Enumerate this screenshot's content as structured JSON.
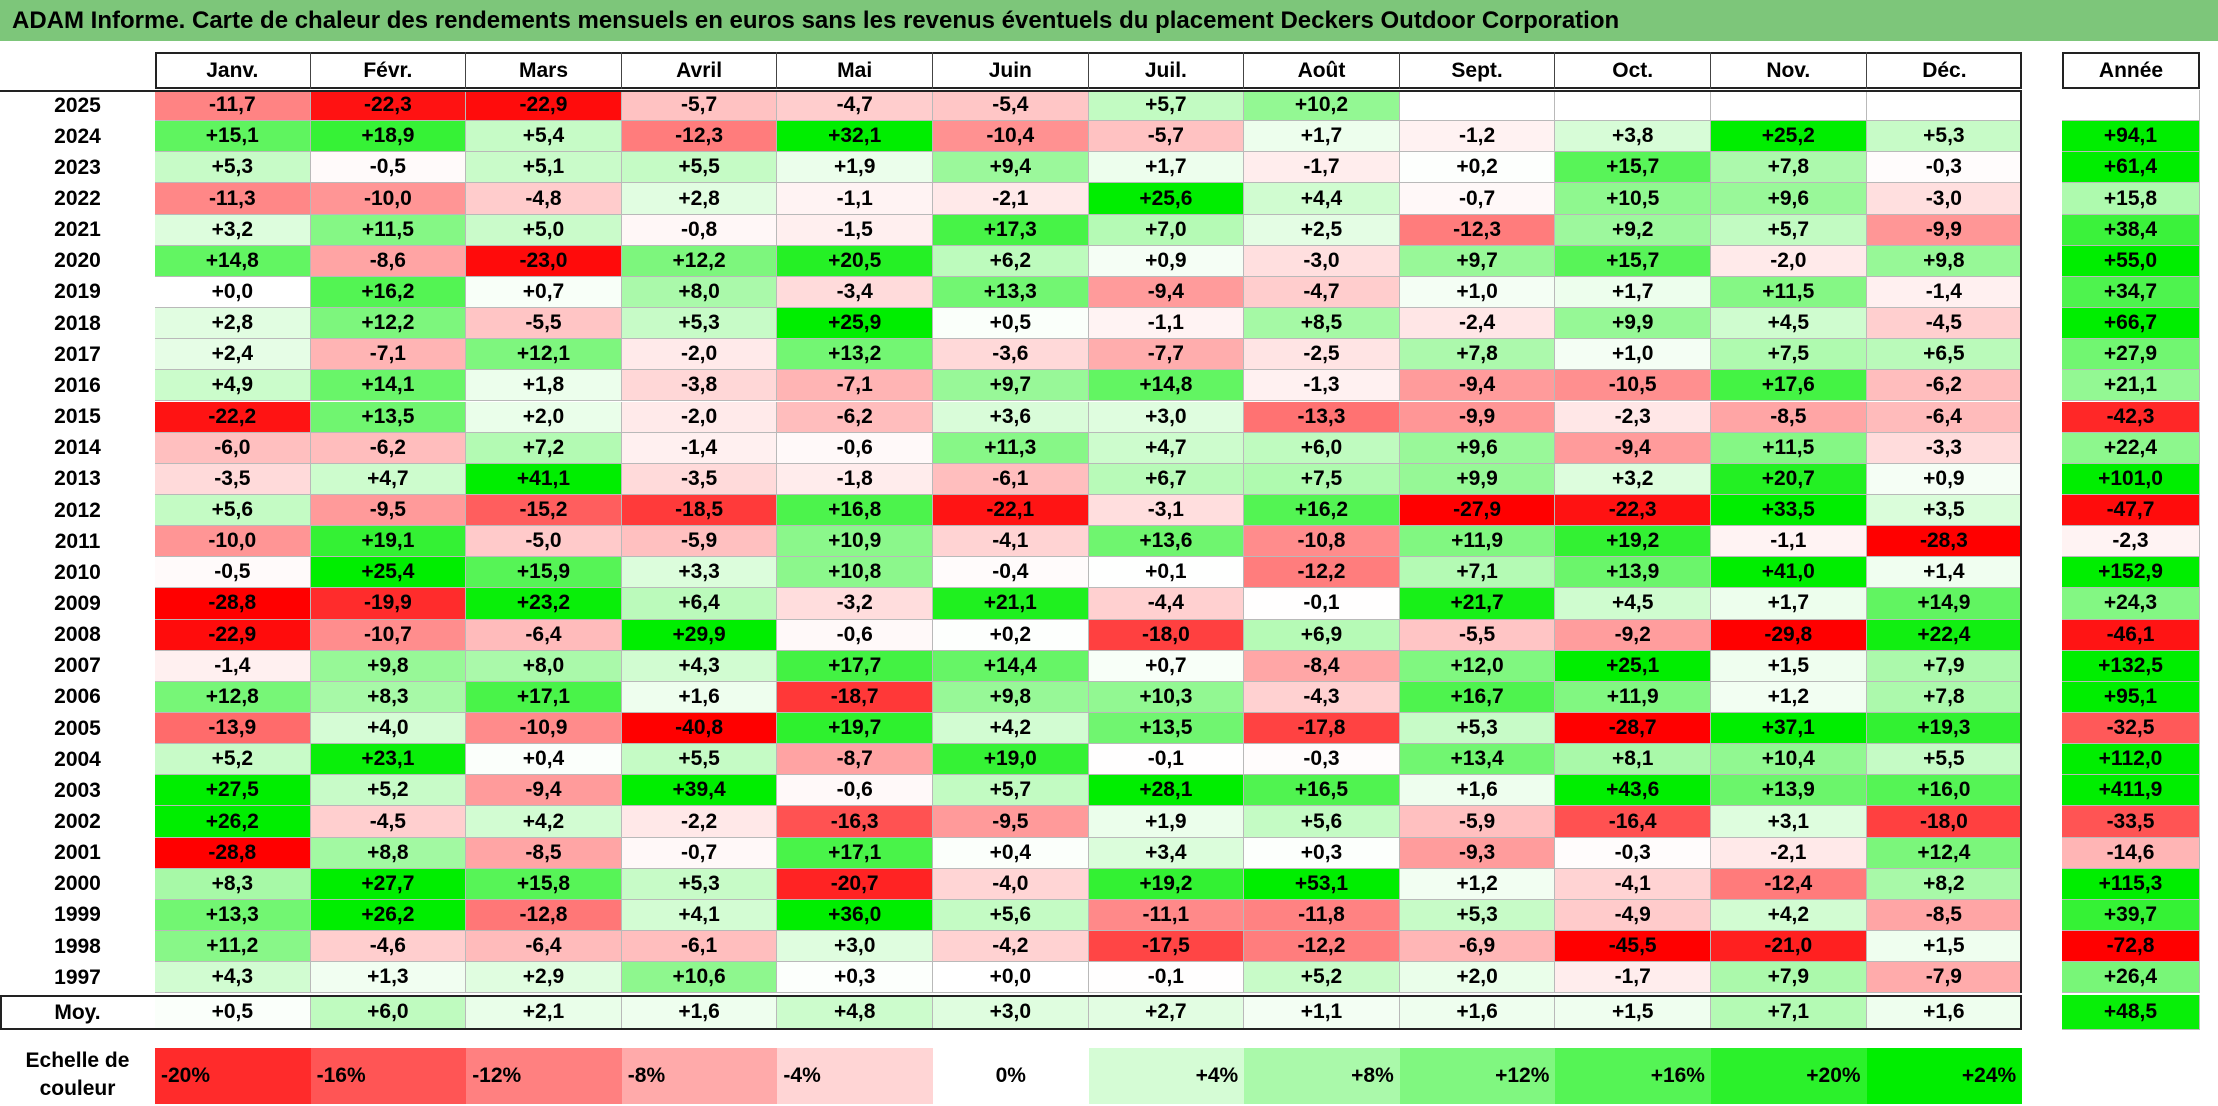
{
  "title": "ADAM Informe. Carte de chaleur des rendements mensuels en euros sans les revenus éventuels du placement Deckers Outdoor Corporation",
  "chart_data": {
    "type": "heatmap",
    "title": "ADAM Informe. Carte de chaleur des rendements mensuels en euros sans les revenus éventuels du placement Deckers Outdoor Corporation",
    "months": [
      "Janv.",
      "Févr.",
      "Mars",
      "Avril",
      "Mai",
      "Juin",
      "Juil.",
      "Août",
      "Sept.",
      "Oct.",
      "Nov.",
      "Déc."
    ],
    "year_header": "Année",
    "rows": [
      {
        "year": "2025",
        "values": [
          "-11,7",
          "-22,3",
          "-22,9",
          "-5,7",
          "-4,7",
          "-5,4",
          "+5,7",
          "+10,2",
          "",
          "",
          "",
          ""
        ],
        "annual": ""
      },
      {
        "year": "2024",
        "values": [
          "+15,1",
          "+18,9",
          "+5,4",
          "-12,3",
          "+32,1",
          "-10,4",
          "-5,7",
          "+1,7",
          "-1,2",
          "+3,8",
          "+25,2",
          "+5,3"
        ],
        "annual": "+94,1"
      },
      {
        "year": "2023",
        "values": [
          "+5,3",
          "-0,5",
          "+5,1",
          "+5,5",
          "+1,9",
          "+9,4",
          "+1,7",
          "-1,7",
          "+0,2",
          "+15,7",
          "+7,8",
          "-0,3"
        ],
        "annual": "+61,4"
      },
      {
        "year": "2022",
        "values": [
          "-11,3",
          "-10,0",
          "-4,8",
          "+2,8",
          "-1,1",
          "-2,1",
          "+25,6",
          "+4,4",
          "-0,7",
          "+10,5",
          "+9,6",
          "-3,0"
        ],
        "annual": "+15,8"
      },
      {
        "year": "2021",
        "values": [
          "+3,2",
          "+11,5",
          "+5,0",
          "-0,8",
          "-1,5",
          "+17,3",
          "+7,0",
          "+2,5",
          "-12,3",
          "+9,2",
          "+5,7",
          "-9,9"
        ],
        "annual": "+38,4"
      },
      {
        "year": "2020",
        "values": [
          "+14,8",
          "-8,6",
          "-23,0",
          "+12,2",
          "+20,5",
          "+6,2",
          "+0,9",
          "-3,0",
          "+9,7",
          "+15,7",
          "-2,0",
          "+9,8"
        ],
        "annual": "+55,0"
      },
      {
        "year": "2019",
        "values": [
          "+0,0",
          "+16,2",
          "+0,7",
          "+8,0",
          "-3,4",
          "+13,3",
          "-9,4",
          "-4,7",
          "+1,0",
          "+1,7",
          "+11,5",
          "-1,4"
        ],
        "annual": "+34,7"
      },
      {
        "year": "2018",
        "values": [
          "+2,8",
          "+12,2",
          "-5,5",
          "+5,3",
          "+25,9",
          "+0,5",
          "-1,1",
          "+8,5",
          "-2,4",
          "+9,9",
          "+4,5",
          "-4,5"
        ],
        "annual": "+66,7"
      },
      {
        "year": "2017",
        "values": [
          "+2,4",
          "-7,1",
          "+12,1",
          "-2,0",
          "+13,2",
          "-3,6",
          "-7,7",
          "-2,5",
          "+7,8",
          "+1,0",
          "+7,5",
          "+6,5"
        ],
        "annual": "+27,9"
      },
      {
        "year": "2016",
        "values": [
          "+4,9",
          "+14,1",
          "+1,8",
          "-3,8",
          "-7,1",
          "+9,7",
          "+14,8",
          "-1,3",
          "-9,4",
          "-10,5",
          "+17,6",
          "-6,2"
        ],
        "annual": "+21,1"
      },
      {
        "year": "2015",
        "values": [
          "-22,2",
          "+13,5",
          "+2,0",
          "-2,0",
          "-6,2",
          "+3,6",
          "+3,0",
          "-13,3",
          "-9,9",
          "-2,3",
          "-8,5",
          "-6,4"
        ],
        "annual": "-42,3"
      },
      {
        "year": "2014",
        "values": [
          "-6,0",
          "-6,2",
          "+7,2",
          "-1,4",
          "-0,6",
          "+11,3",
          "+4,7",
          "+6,0",
          "+9,6",
          "-9,4",
          "+11,5",
          "-3,3"
        ],
        "annual": "+22,4"
      },
      {
        "year": "2013",
        "values": [
          "-3,5",
          "+4,7",
          "+41,1",
          "-3,5",
          "-1,8",
          "-6,1",
          "+6,7",
          "+7,5",
          "+9,9",
          "+3,2",
          "+20,7",
          "+0,9"
        ],
        "annual": "+101,0"
      },
      {
        "year": "2012",
        "values": [
          "+5,6",
          "-9,5",
          "-15,2",
          "-18,5",
          "+16,8",
          "-22,1",
          "-3,1",
          "+16,2",
          "-27,9",
          "-22,3",
          "+33,5",
          "+3,5"
        ],
        "annual": "-47,7"
      },
      {
        "year": "2011",
        "values": [
          "-10,0",
          "+19,1",
          "-5,0",
          "-5,9",
          "+10,9",
          "-4,1",
          "+13,6",
          "-10,8",
          "+11,9",
          "+19,2",
          "-1,1",
          "-28,3"
        ],
        "annual": "-2,3"
      },
      {
        "year": "2010",
        "values": [
          "-0,5",
          "+25,4",
          "+15,9",
          "+3,3",
          "+10,8",
          "-0,4",
          "+0,1",
          "-12,2",
          "+7,1",
          "+13,9",
          "+41,0",
          "+1,4"
        ],
        "annual": "+152,9"
      },
      {
        "year": "2009",
        "values": [
          "-28,8",
          "-19,9",
          "+23,2",
          "+6,4",
          "-3,2",
          "+21,1",
          "-4,4",
          "-0,1",
          "+21,7",
          "+4,5",
          "+1,7",
          "+14,9"
        ],
        "annual": "+24,3"
      },
      {
        "year": "2008",
        "values": [
          "-22,9",
          "-10,7",
          "-6,4",
          "+29,9",
          "-0,6",
          "+0,2",
          "-18,0",
          "+6,9",
          "-5,5",
          "-9,2",
          "-29,8",
          "+22,4"
        ],
        "annual": "-46,1"
      },
      {
        "year": "2007",
        "values": [
          "-1,4",
          "+9,8",
          "+8,0",
          "+4,3",
          "+17,7",
          "+14,4",
          "+0,7",
          "-8,4",
          "+12,0",
          "+25,1",
          "+1,5",
          "+7,9"
        ],
        "annual": "+132,5"
      },
      {
        "year": "2006",
        "values": [
          "+12,8",
          "+8,3",
          "+17,1",
          "+1,6",
          "-18,7",
          "+9,8",
          "+10,3",
          "-4,3",
          "+16,7",
          "+11,9",
          "+1,2",
          "+7,8"
        ],
        "annual": "+95,1"
      },
      {
        "year": "2005",
        "values": [
          "-13,9",
          "+4,0",
          "-10,9",
          "-40,8",
          "+19,7",
          "+4,2",
          "+13,5",
          "-17,8",
          "+5,3",
          "-28,7",
          "+37,1",
          "+19,3"
        ],
        "annual": "-32,5"
      },
      {
        "year": "2004",
        "values": [
          "+5,2",
          "+23,1",
          "+0,4",
          "+5,5",
          "-8,7",
          "+19,0",
          "-0,1",
          "-0,3",
          "+13,4",
          "+8,1",
          "+10,4",
          "+5,5"
        ],
        "annual": "+112,0"
      },
      {
        "year": "2003",
        "values": [
          "+27,5",
          "+5,2",
          "-9,4",
          "+39,4",
          "-0,6",
          "+5,7",
          "+28,1",
          "+16,5",
          "+1,6",
          "+43,6",
          "+13,9",
          "+16,0"
        ],
        "annual": "+411,9"
      },
      {
        "year": "2002",
        "values": [
          "+26,2",
          "-4,5",
          "+4,2",
          "-2,2",
          "-16,3",
          "-9,5",
          "+1,9",
          "+5,6",
          "-5,9",
          "-16,4",
          "+3,1",
          "-18,0"
        ],
        "annual": "-33,5"
      },
      {
        "year": "2001",
        "values": [
          "-28,8",
          "+8,8",
          "-8,5",
          "-0,7",
          "+17,1",
          "+0,4",
          "+3,4",
          "+0,3",
          "-9,3",
          "-0,3",
          "-2,1",
          "+12,4"
        ],
        "annual": "-14,6"
      },
      {
        "year": "2000",
        "values": [
          "+8,3",
          "+27,7",
          "+15,8",
          "+5,3",
          "-20,7",
          "-4,0",
          "+19,2",
          "+53,1",
          "+1,2",
          "-4,1",
          "-12,4",
          "+8,2"
        ],
        "annual": "+115,3"
      },
      {
        "year": "1999",
        "values": [
          "+13,3",
          "+26,2",
          "-12,8",
          "+4,1",
          "+36,0",
          "+5,6",
          "-11,1",
          "-11,8",
          "+5,3",
          "-4,9",
          "+4,2",
          "-8,5"
        ],
        "annual": "+39,7"
      },
      {
        "year": "1998",
        "values": [
          "+11,2",
          "-4,6",
          "-6,4",
          "-6,1",
          "+3,0",
          "-4,2",
          "-17,5",
          "-12,2",
          "-6,9",
          "-45,5",
          "-21,0",
          "+1,5"
        ],
        "annual": "-72,8"
      },
      {
        "year": "1997",
        "values": [
          "+4,3",
          "+1,3",
          "+2,9",
          "+10,6",
          "+0,3",
          "+0,0",
          "-0,1",
          "+5,2",
          "+2,0",
          "-1,7",
          "+7,9",
          "-7,9"
        ],
        "annual": "+26,4"
      }
    ],
    "average": {
      "label": "Moy.",
      "values": [
        "+0,5",
        "+6,0",
        "+2,1",
        "+1,6",
        "+4,8",
        "+3,0",
        "+2,7",
        "+1,1",
        "+1,6",
        "+1,5",
        "+7,1",
        "+1,6"
      ],
      "annual": "+48,5"
    },
    "scale": {
      "label_line1": "Echelle de",
      "label_line2": "couleur",
      "steps": [
        {
          "label": "-20%",
          "value": -20,
          "align": "left"
        },
        {
          "label": "-16%",
          "value": -16,
          "align": "left"
        },
        {
          "label": "-12%",
          "value": -12,
          "align": "left"
        },
        {
          "label": "-8%",
          "value": -8,
          "align": "left"
        },
        {
          "label": "-4%",
          "value": -4,
          "align": "left"
        },
        {
          "label": "0%",
          "value": 0,
          "align": "center"
        },
        {
          "label": "+4%",
          "value": 4,
          "align": "right"
        },
        {
          "label": "+8%",
          "value": 8,
          "align": "right"
        },
        {
          "label": "+12%",
          "value": 12,
          "align": "right"
        },
        {
          "label": "+16%",
          "value": 16,
          "align": "right"
        },
        {
          "label": "+20%",
          "value": 20,
          "align": "right"
        },
        {
          "label": "+24%",
          "value": 24,
          "align": "right"
        }
      ]
    },
    "color_range": {
      "min": -24,
      "max": 24,
      "negative_color": "#ff0000",
      "positive_color": "#00ee00",
      "neutral_color": "#ffffff"
    },
    "annual_color_range": {
      "min": -50,
      "max": 50
    }
  },
  "colors": {
    "title_bar": "#7dc67a",
    "header_border": "#444444"
  }
}
